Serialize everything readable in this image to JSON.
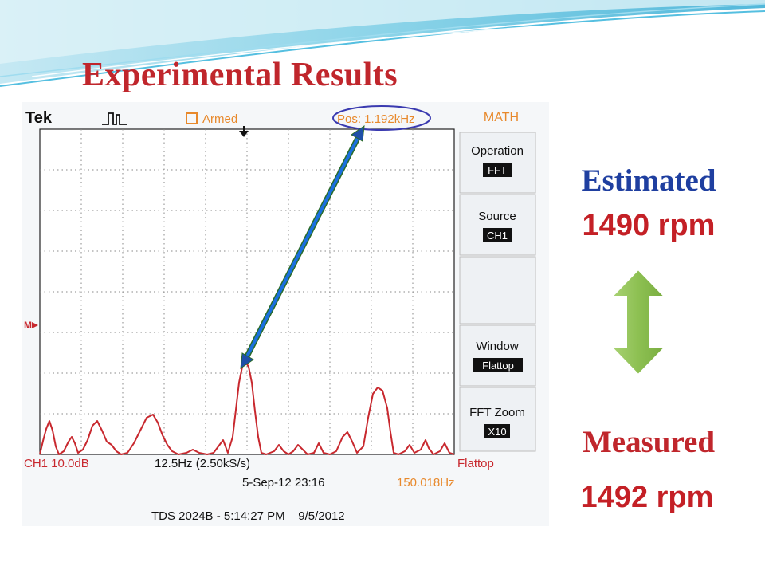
{
  "slide": {
    "title": "Experimental Results",
    "estimated_label": "Estimated",
    "estimated_value": "1490 rpm",
    "measured_label": "Measured",
    "measured_value": "1492 rpm"
  },
  "scope": {
    "brand": "Tek",
    "status": "Armed",
    "position": "Pos: 1.192kHz",
    "menu_title": "MATH",
    "menu": [
      {
        "label": "Operation",
        "value": "FFT"
      },
      {
        "label": "Source",
        "value": "CH1"
      },
      {
        "label": "Window",
        "value": "Flattop"
      },
      {
        "label": "FFT Zoom",
        "value": "X10"
      }
    ],
    "ch_scale": "CH1 10.0dB",
    "span": "12.5Hz (2.50kS/s)",
    "window_readout": "Flattop",
    "datetime": "5-Sep-12 23:16",
    "frequency": "150.018Hz",
    "footer": "TDS 2024B - 5:14:27 PM    9/5/2012",
    "marker": "M"
  },
  "colors": {
    "title_red": "#c0262c",
    "estimated_blue": "#1f3fa0",
    "value_red": "#c42026",
    "trace": "#c8282e",
    "scope_orange": "#e8892c",
    "annotation_arrow": "#1a6fe0",
    "double_arrow_green": "#8dc052"
  }
}
